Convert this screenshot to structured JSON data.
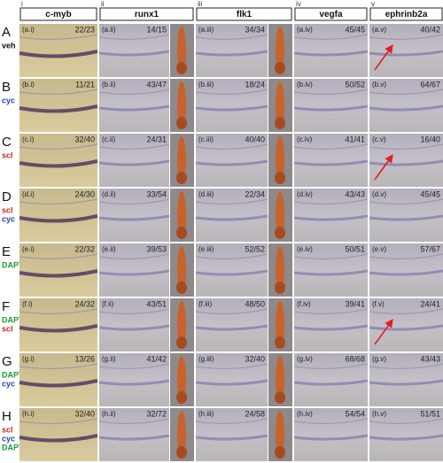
{
  "columns": [
    {
      "numeral": "i",
      "name": "c-myb"
    },
    {
      "numeral": "ii",
      "name": "runx1"
    },
    {
      "numeral": "iii",
      "name": "flk1"
    },
    {
      "numeral": "iv",
      "name": "vegfa"
    },
    {
      "numeral": "v",
      "name": "ephrinb2a"
    }
  ],
  "rows": [
    {
      "letter": "A",
      "treatments": [
        {
          "text": "veh",
          "color": "#111111"
        }
      ],
      "cells": [
        {
          "label": "(a.i)",
          "score": "22/23"
        },
        {
          "label": "(a.ii)",
          "score": "14/15"
        },
        {
          "label": "(a.iii)",
          "score": "34/34"
        },
        {
          "label": "(a.iv)",
          "score": "45/45"
        },
        {
          "label": "(a.v)",
          "score": "40/42"
        }
      ]
    },
    {
      "letter": "B",
      "treatments": [
        {
          "text": "cyc",
          "color": "#2a3fb0"
        }
      ],
      "cells": [
        {
          "label": "(b.i)",
          "score": "11/21"
        },
        {
          "label": "(b.ii)",
          "score": "43/47"
        },
        {
          "label": "(b.iii)",
          "score": "18/24"
        },
        {
          "label": "(b.iv)",
          "score": "50/52"
        },
        {
          "label": "(b.v)",
          "score": "64/67"
        }
      ]
    },
    {
      "letter": "C",
      "treatments": [
        {
          "text": "scl",
          "color": "#c0282a"
        }
      ],
      "cells": [
        {
          "label": "(c.i)",
          "score": "32/40"
        },
        {
          "label": "(c.ii)",
          "score": "24/31"
        },
        {
          "label": "(c.iii)",
          "score": "40/40"
        },
        {
          "label": "(c.iv)",
          "score": "41/41"
        },
        {
          "label": "(c.v)",
          "score": "16/40"
        }
      ]
    },
    {
      "letter": "D",
      "treatments": [
        {
          "text": "scl",
          "color": "#c0282a"
        },
        {
          "text": "cyc",
          "color": "#2a3fb0"
        }
      ],
      "cells": [
        {
          "label": "(d.i)",
          "score": "24/30"
        },
        {
          "label": "(d.ii)",
          "score": "33/54"
        },
        {
          "label": "(d.iii)",
          "score": "22/34"
        },
        {
          "label": "(d.iv)",
          "score": "43/43"
        },
        {
          "label": "(d.v)",
          "score": "45/45"
        }
      ]
    },
    {
      "letter": "E",
      "treatments": [
        {
          "text": "DAPT",
          "color": "#1e9a3a"
        }
      ],
      "cells": [
        {
          "label": "(e.i)",
          "score": "22/32"
        },
        {
          "label": "(e.ii)",
          "score": "39/53"
        },
        {
          "label": "(e.iii)",
          "score": "52/52"
        },
        {
          "label": "(e.iv)",
          "score": "50/51"
        },
        {
          "label": "(e.v)",
          "score": "57/67"
        }
      ]
    },
    {
      "letter": "F",
      "treatments": [
        {
          "text": "DAPT",
          "color": "#1e9a3a"
        },
        {
          "text": "scl",
          "color": "#c0282a"
        }
      ],
      "cells": [
        {
          "label": "(f.i)",
          "score": "24/32"
        },
        {
          "label": "(f.ii)",
          "score": "43/51"
        },
        {
          "label": "(f.iii)",
          "score": "48/50"
        },
        {
          "label": "(f.iv)",
          "score": "39/41"
        },
        {
          "label": "(f.v)",
          "score": "24/41"
        }
      ]
    },
    {
      "letter": "G",
      "treatments": [
        {
          "text": "DAPT",
          "color": "#1e9a3a"
        },
        {
          "text": "cyc",
          "color": "#2a3fb0"
        }
      ],
      "cells": [
        {
          "label": "(g.i)",
          "score": "13/26"
        },
        {
          "label": "(g.ii)",
          "score": "41/42"
        },
        {
          "label": "(g.iii)",
          "score": "32/40"
        },
        {
          "label": "(g.iv)",
          "score": "68/68"
        },
        {
          "label": "(g.v)",
          "score": "43/43"
        }
      ]
    },
    {
      "letter": "H",
      "treatments": [
        {
          "text": "scl",
          "color": "#c0282a"
        },
        {
          "text": "cyc",
          "color": "#2a3fb0"
        },
        {
          "text": "DAPT",
          "color": "#1e9a3a"
        }
      ],
      "cells": [
        {
          "label": "(h.i)",
          "score": "32/40"
        },
        {
          "label": "(h.ii)",
          "score": "32/72"
        },
        {
          "label": "(h.iii)",
          "score": "24/58"
        },
        {
          "label": "(h.iv)",
          "score": "54/54"
        },
        {
          "label": "(h.v)",
          "score": "51/51"
        }
      ]
    }
  ]
}
